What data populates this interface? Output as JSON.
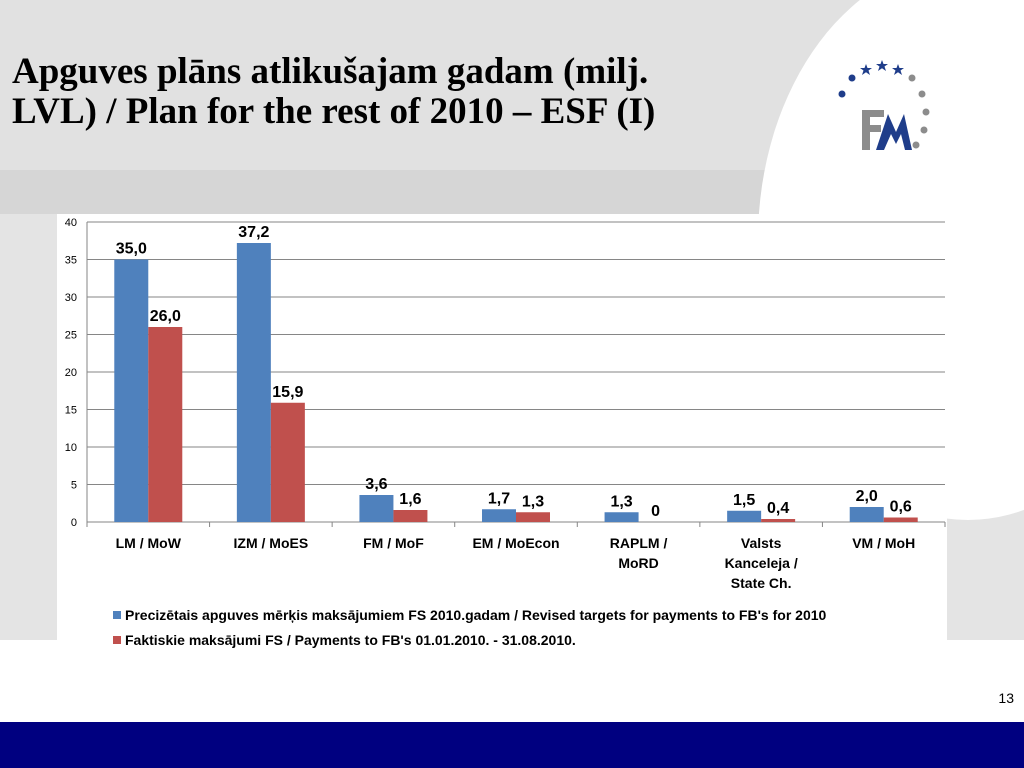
{
  "slide": {
    "title": "Apguves plāns atlikušajam gadam (milj.\nLVL) / Plan for the rest of 2010 – ESF (I)",
    "page_number": "13",
    "colors": {
      "footer": "#000080",
      "logo_blue": "#1f3d8a",
      "logo_gray": "#8c8c8c"
    }
  },
  "logo": {
    "icon": "fm-logo-with-stars",
    "text": "FM"
  },
  "chart_data": {
    "type": "bar",
    "categories": [
      "LM / MoW",
      "IZM / MoES",
      "FM / MoF",
      "EM / MoEcon",
      "RAPLM / MoRD",
      "Valsts Kanceleja / State Ch.",
      "VM / MoH"
    ],
    "category_lines": [
      [
        "LM / MoW"
      ],
      [
        "IZM / MoES"
      ],
      [
        "FM / MoF"
      ],
      [
        "EM / MoEcon"
      ],
      [
        "RAPLM /",
        "MoRD"
      ],
      [
        "Valsts",
        "Kanceleja /",
        "State Ch."
      ],
      [
        "VM / MoH"
      ]
    ],
    "series": [
      {
        "name": "Precizētais apguves mērķis maksājumiem FS 2010.gadam / Revised targets for payments to FB's for 2010",
        "color": "#4f81bd",
        "values": [
          35.0,
          37.2,
          3.6,
          1.7,
          1.3,
          1.5,
          2.0
        ],
        "labels": [
          "35,0",
          "37,2",
          "3,6",
          "1,7",
          "1,3",
          "1,5",
          "2,0"
        ]
      },
      {
        "name": "Faktiskie maksājumi FS / Payments to FB's 01.01.2010. - 31.08.2010.",
        "color": "#c0504d",
        "values": [
          26.0,
          15.9,
          1.6,
          1.3,
          0,
          0.4,
          0.6
        ],
        "labels": [
          "26,0",
          "15,9",
          "1,6",
          "1,3",
          "0",
          "0,4",
          "0,6"
        ]
      }
    ],
    "ylim": [
      0,
      40
    ],
    "yticks": [
      0,
      5,
      10,
      15,
      20,
      25,
      30,
      35,
      40
    ],
    "grid": true,
    "legend_position": "bottom"
  }
}
